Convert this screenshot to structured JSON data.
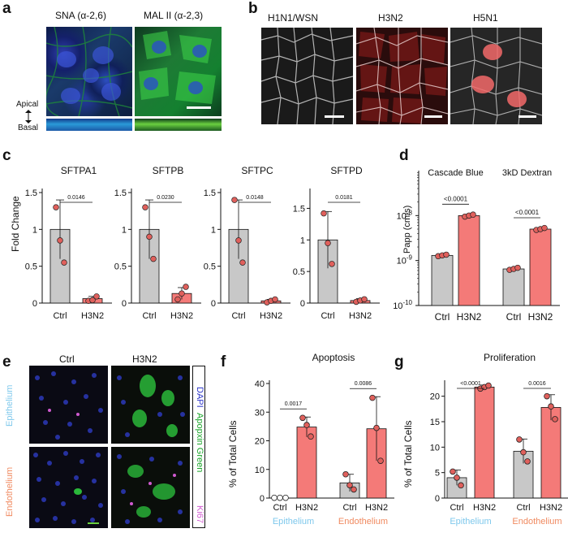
{
  "panels": {
    "a": {
      "label": "a",
      "stains": [
        "SNA (α-2,6)",
        "MAL II (α-2,3)"
      ],
      "axis_top": "Apical",
      "axis_bottom": "Basal"
    },
    "b": {
      "label": "b",
      "strains": [
        "H1N1/WSN",
        "H3N2",
        "H5N1"
      ]
    },
    "c": {
      "label": "c",
      "ylabel": "Fold Change"
    },
    "d": {
      "label": "d",
      "ylabel": "Papp (cm/s)"
    },
    "e": {
      "label": "e",
      "cols": [
        "Ctrl",
        "H3N2"
      ],
      "rows": [
        "Epithelium",
        "Endothelium"
      ],
      "stain_legend": [
        {
          "text": "DAPI",
          "color": "#2a33c8"
        },
        {
          "text": "Apopxin Green",
          "color": "#1aa52a"
        },
        {
          "text": "Ki67",
          "color": "#d25ed2"
        }
      ]
    },
    "f": {
      "label": "f",
      "title": "Apoptosis",
      "ylabel": "% of Total Cells",
      "groups": [
        "Epithelium",
        "Endothelium"
      ]
    },
    "g": {
      "label": "g",
      "title": "Proliferation",
      "ylabel": "% of Total Cells",
      "groups": [
        "Epithelium",
        "Endothelium"
      ]
    }
  },
  "colors": {
    "ctrl": "#c8c8c8",
    "h3n2": "#f47a78",
    "point": "#e0605c",
    "epithelium": "#7ec8ec",
    "endothelium": "#f08a60"
  },
  "chart_data": [
    {
      "id": "c1",
      "type": "bar",
      "title": "SFTPA1",
      "categories": [
        "Ctrl",
        "H3N2"
      ],
      "values": [
        1.0,
        0.06
      ],
      "errors": [
        0.4,
        0.03
      ],
      "points": [
        [
          1.3,
          0.85,
          0.55
        ],
        [
          0.03,
          0.04,
          0.09
        ]
      ],
      "pvalue": "0.0146",
      "ylim": [
        0,
        1.5
      ],
      "yticks": [
        0,
        0.5,
        1,
        1.5
      ],
      "yticklabels": [
        "0",
        "0.5",
        "1",
        "1.5"
      ]
    },
    {
      "id": "c2",
      "type": "bar",
      "title": "SFTPB",
      "categories": [
        "Ctrl",
        "H3N2"
      ],
      "values": [
        1.0,
        0.13
      ],
      "errors": [
        0.4,
        0.08
      ],
      "points": [
        [
          1.3,
          0.9,
          0.6
        ],
        [
          0.05,
          0.13,
          0.22
        ]
      ],
      "pvalue": "0.0230",
      "ylim": [
        0,
        1.5
      ],
      "yticks": [
        0,
        0.5,
        1,
        1.5
      ],
      "yticklabels": [
        "0",
        "0.5",
        "1",
        "1.5"
      ]
    },
    {
      "id": "c3",
      "type": "bar",
      "title": "SFTPC",
      "categories": [
        "Ctrl",
        "H3N2"
      ],
      "values": [
        1.0,
        0.03
      ],
      "errors": [
        0.4,
        0.02
      ],
      "points": [
        [
          1.4,
          0.85,
          0.55
        ],
        [
          0.01,
          0.03,
          0.05
        ]
      ],
      "pvalue": "0.0148",
      "ylim": [
        0,
        1.5
      ],
      "yticks": [
        0,
        0.5,
        1,
        1.5
      ],
      "yticklabels": [
        "0",
        "0.5",
        "1",
        "1.5"
      ]
    },
    {
      "id": "c4",
      "type": "bar",
      "title": "SFTPD",
      "categories": [
        "Ctrl",
        "H3N2"
      ],
      "values": [
        1.0,
        0.04
      ],
      "errors": [
        0.45,
        0.03
      ],
      "points": [
        [
          1.42,
          0.95,
          0.62
        ],
        [
          0.02,
          0.04,
          0.06
        ]
      ],
      "pvalue": "0.0181",
      "ylim": [
        0,
        1.75
      ],
      "yticks": [
        0,
        0.5,
        1,
        1.5
      ],
      "yticklabels": [
        "0",
        "0.5",
        "1",
        "1.5"
      ]
    },
    {
      "id": "d",
      "type": "bar",
      "log": true,
      "groups": [
        {
          "title": "Cascade Blue",
          "values": [
            1.3e-09,
            1e-08
          ],
          "points": [
            [
              1.25e-09,
              1.3e-09,
              1.35e-09
            ],
            [
              9.5e-09,
              1e-08,
              1.05e-08
            ]
          ],
          "pvalue": "<0.0001"
        },
        {
          "title": "3kD Dextran",
          "values": [
            6.5e-10,
            5e-09
          ],
          "points": [
            [
              6.2e-10,
              6.5e-10,
              6.9e-10
            ],
            [
              4.8e-09,
              5e-09,
              5.3e-09
            ]
          ],
          "pvalue": "<0.0001"
        }
      ],
      "categories": [
        "Ctrl",
        "H3N2"
      ],
      "ylim": [
        1e-10,
        1e-07
      ],
      "yticklabels": [
        "10-8",
        "10-9",
        "10-10"
      ]
    },
    {
      "id": "f",
      "type": "bar",
      "title": "Apoptosis",
      "groups": [
        {
          "name": "Epithelium",
          "values": [
            0.1,
            24.8
          ],
          "errors": [
            0.3,
            3.5
          ],
          "points": [
            [
              0.1,
              0.1,
              0.1
            ],
            [
              28.0,
              25.5,
              21.5
            ]
          ],
          "pvalue": "0.0017"
        },
        {
          "name": "Endothelium",
          "values": [
            5.3,
            24.2
          ],
          "errors": [
            3.0,
            11.2
          ],
          "points": [
            [
              8.3,
              4.5,
              3.0
            ],
            [
              35.0,
              24.5,
              13.0
            ]
          ],
          "pvalue": "0.0086"
        }
      ],
      "categories": [
        "Ctrl",
        "H3N2"
      ],
      "ylim": [
        0,
        40
      ],
      "yticks": [
        0,
        10,
        20,
        30,
        40
      ],
      "yticklabels": [
        "0",
        "10",
        "20",
        "30",
        "40"
      ]
    },
    {
      "id": "g",
      "type": "bar",
      "title": "Proliferation",
      "groups": [
        {
          "name": "Epithelium",
          "values": [
            4.0,
            21.8
          ],
          "errors": [
            1.5,
            0.4
          ],
          "points": [
            [
              5.2,
              4.0,
              2.5
            ],
            [
              21.5,
              21.8,
              22.1
            ]
          ],
          "pvalue": "<0.0001"
        },
        {
          "name": "Endothelium",
          "values": [
            9.2,
            17.8
          ],
          "errors": [
            2.4,
            2.5
          ],
          "points": [
            [
              11.5,
              9.0,
              7.2
            ],
            [
              20.0,
              18.0,
              15.5
            ]
          ],
          "pvalue": "0.0016"
        }
      ],
      "categories": [
        "Ctrl",
        "H3N2"
      ],
      "ylim": [
        0,
        22.5
      ],
      "yticks": [
        0,
        5,
        10,
        15,
        20
      ],
      "yticklabels": [
        "0",
        "5",
        "10",
        "15",
        "20"
      ]
    }
  ]
}
